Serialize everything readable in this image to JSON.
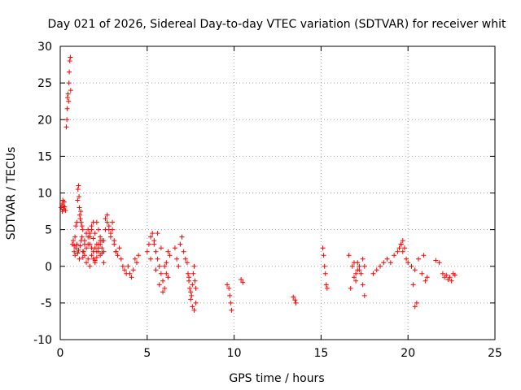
{
  "chart_data": {
    "type": "scatter",
    "title": "Day 021 of 2026, Sidereal Day-to-day VTEC variation (SDTVAR) for receiver whit",
    "xlabel": "GPS time / hours",
    "ylabel": "SDTVAR / TECUs",
    "xlim": [
      0,
      25
    ],
    "ylim": [
      -10,
      30
    ],
    "xticks": [
      "0",
      "5",
      "10",
      "15",
      "20",
      "25"
    ],
    "yticks": [
      "-10",
      "-5",
      "0",
      "5",
      "10",
      "15",
      "20",
      "25",
      "30"
    ],
    "grid": true,
    "marker": "+",
    "color": "#ff0000",
    "series": [
      {
        "name": "SDTVAR",
        "x": [
          0.05,
          0.1,
          0.12,
          0.15,
          0.18,
          0.2,
          0.22,
          0.25,
          0.3,
          0.35,
          0.38,
          0.4,
          0.42,
          0.45,
          0.48,
          0.5,
          0.52,
          0.55,
          0.58,
          0.6,
          0.7,
          0.75,
          0.8,
          0.85,
          0.9,
          0.95,
          1.0,
          1.02,
          1.05,
          1.08,
          1.1,
          1.12,
          1.15,
          1.18,
          1.2,
          1.25,
          1.3,
          0.8,
          0.85,
          0.9,
          0.95,
          1.0,
          1.05,
          1.1,
          1.15,
          1.2,
          1.25,
          1.3,
          1.35,
          1.4,
          1.3,
          1.4,
          1.5,
          1.6,
          1.7,
          1.8,
          1.9,
          2.0,
          2.1,
          2.2,
          2.3,
          2.4,
          2.5,
          1.4,
          1.5,
          1.6,
          1.7,
          1.8,
          1.9,
          2.0,
          2.1,
          2.2,
          2.3,
          2.4,
          2.5,
          2.6,
          1.5,
          1.6,
          1.7,
          1.8,
          1.9,
          2.0,
          2.1,
          2.2,
          2.3,
          2.4,
          2.5,
          1.6,
          1.7,
          1.8,
          1.9,
          2.0,
          2.1,
          2.2,
          2.3,
          2.6,
          2.7,
          2.8,
          2.9,
          3.0,
          3.1,
          3.2,
          3.3,
          3.4,
          3.5,
          3.6,
          3.7,
          3.8,
          2.7,
          2.8,
          2.9,
          3.0,
          3.1,
          3.2,
          3.9,
          4.0,
          4.1,
          4.2,
          4.3,
          4.4,
          4.5,
          5.0,
          5.1,
          5.2,
          5.3,
          5.4,
          5.5,
          5.6,
          5.7,
          5.8,
          5.9,
          6.0,
          6.1,
          6.2,
          6.3,
          5.2,
          5.4,
          5.6,
          5.8,
          6.0,
          6.2,
          5.5,
          5.7,
          5.9,
          6.1,
          6.6,
          6.7,
          6.8,
          6.9,
          7.0,
          7.1,
          7.2,
          7.3,
          7.35,
          7.4,
          7.45,
          7.5,
          7.55,
          7.6,
          7.65,
          7.7,
          7.75,
          7.8,
          7.4,
          7.5,
          7.6,
          7.7,
          7.8,
          9.6,
          9.7,
          9.75,
          9.8,
          9.85,
          10.4,
          10.5,
          13.4,
          13.5,
          13.55,
          15.1,
          15.15,
          15.2,
          15.25,
          15.3,
          15.35,
          16.6,
          16.7,
          16.8,
          16.9,
          17.0,
          17.1,
          17.2,
          17.3,
          17.4,
          17.5,
          16.9,
          17.0,
          17.1,
          17.2,
          17.4,
          17.5,
          18.0,
          18.2,
          18.4,
          18.6,
          18.8,
          19.0,
          19.2,
          19.4,
          19.6,
          19.7,
          19.8,
          19.9,
          20.0,
          20.2,
          20.4,
          20.6,
          19.5,
          19.6,
          19.7,
          20.3,
          20.4,
          20.5,
          20.8,
          20.9,
          21.0,
          21.1,
          21.6,
          21.8,
          22.0,
          22.1,
          22.2,
          22.3,
          22.4,
          22.5,
          22.6,
          22.7
        ],
        "y": [
          8.0,
          8.5,
          7.5,
          9.0,
          8.2,
          7.8,
          8.8,
          8.1,
          7.6,
          19.0,
          20.0,
          21.5,
          23.0,
          23.5,
          22.5,
          25.0,
          26.5,
          28.0,
          28.5,
          24.0,
          3.0,
          3.5,
          2.8,
          4.0,
          5.5,
          6.0,
          9.0,
          10.5,
          11.0,
          9.5,
          8.0,
          7.0,
          6.5,
          7.5,
          6.0,
          5.5,
          5.0,
          2.0,
          1.5,
          2.5,
          3.0,
          1.8,
          2.2,
          1.0,
          2.8,
          3.5,
          4.0,
          1.2,
          2.0,
          3.0,
          2.0,
          3.5,
          4.5,
          5.0,
          3.0,
          2.5,
          1.0,
          0.5,
          2.0,
          3.0,
          4.0,
          3.5,
          2.0,
          1.5,
          2.5,
          3.0,
          4.0,
          5.5,
          6.0,
          4.5,
          3.0,
          2.0,
          1.5,
          2.5,
          3.5,
          5.0,
          0.5,
          1.0,
          0.0,
          1.5,
          2.0,
          0.8,
          1.2,
          2.5,
          3.0,
          1.8,
          0.5,
          4.0,
          4.5,
          5.0,
          3.8,
          2.5,
          6.0,
          5.0,
          3.5,
          6.5,
          7.0,
          5.5,
          4.0,
          5.0,
          3.5,
          2.0,
          1.5,
          2.5,
          1.0,
          0.0,
          -0.5,
          -1.0,
          6.0,
          5.0,
          4.5,
          6.0,
          3.0,
          2.0,
          0.0,
          -1.0,
          -1.5,
          -0.5,
          1.0,
          0.5,
          1.5,
          2.0,
          3.0,
          4.0,
          4.5,
          3.0,
          2.0,
          1.0,
          0.0,
          -1.0,
          -2.0,
          -3.0,
          0.5,
          2.0,
          1.5,
          1.0,
          3.5,
          4.5,
          2.5,
          0.0,
          -1.5,
          -0.5,
          -2.5,
          -3.5,
          -1.0,
          2.5,
          1.0,
          0.0,
          3.0,
          4.0,
          2.0,
          1.0,
          0.5,
          -1.0,
          -2.0,
          -3.0,
          -3.5,
          -4.0,
          -2.5,
          -1.0,
          0.0,
          -2.0,
          -5.0,
          -1.5,
          -4.5,
          -5.5,
          -6.0,
          -3.0,
          -2.5,
          -3.0,
          -4.0,
          -5.0,
          -6.0,
          -1.8,
          -2.2,
          -4.2,
          -4.6,
          -5.0,
          2.5,
          1.5,
          0.0,
          -1.0,
          -2.5,
          -3.0,
          1.5,
          -3.0,
          0.0,
          -1.5,
          -2.0,
          0.5,
          -0.5,
          -1.0,
          -2.5,
          -4.0,
          0.5,
          -1.0,
          -0.5,
          0.0,
          1.0,
          0.0,
          -1.0,
          -0.5,
          0.0,
          0.5,
          1.0,
          0.5,
          1.5,
          2.0,
          3.0,
          3.5,
          2.5,
          1.0,
          0.5,
          0.0,
          -0.5,
          1.0,
          2.5,
          3.0,
          2.0,
          -2.5,
          -5.5,
          -5.0,
          -1.0,
          1.5,
          -2.0,
          -1.5,
          0.8,
          0.5,
          -1.0,
          -1.5,
          -1.2,
          -1.8,
          -1.5,
          -2.0,
          -1.0,
          -1.2
        ]
      }
    ]
  }
}
